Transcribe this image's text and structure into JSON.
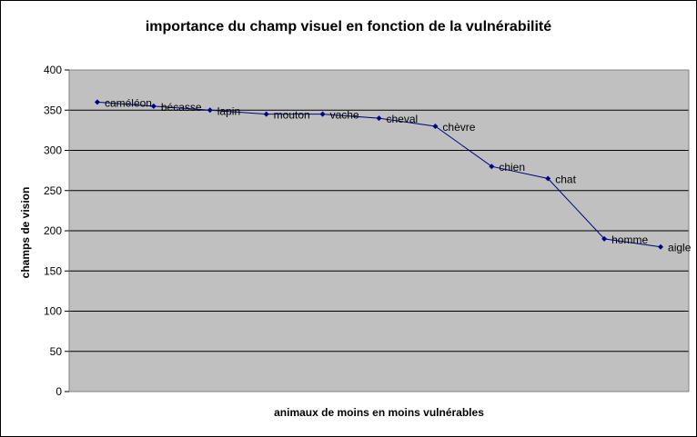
{
  "chart_data": {
    "type": "line",
    "title": "importance du champ visuel en fonction de la vulnérabilité",
    "xlabel": "animaux de moins en moins vulnérables",
    "ylabel": "champs de vision",
    "ylim": [
      0,
      400
    ],
    "yticks": [
      0,
      50,
      100,
      150,
      200,
      250,
      300,
      350,
      400
    ],
    "grid": true,
    "legend": "none",
    "colors": {
      "plot_area": "#c0c0c0",
      "line": "#000080",
      "grid": "#000000"
    },
    "categories": [
      "caméléon",
      "bécasse",
      "lapin",
      "mouton",
      "vache",
      "cheval",
      "chèvre",
      "chien",
      "chat",
      "homme",
      "aigle"
    ],
    "values": [
      360,
      355,
      350,
      345,
      345,
      340,
      330,
      280,
      265,
      190,
      180
    ]
  }
}
